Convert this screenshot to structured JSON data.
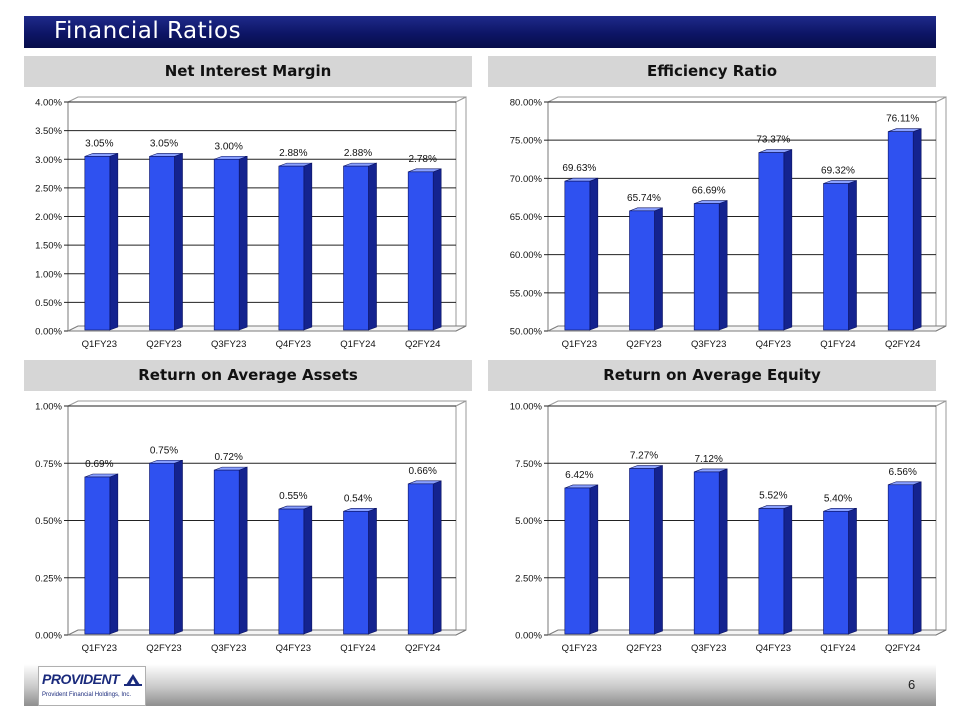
{
  "slide": {
    "title": "Financial Ratios",
    "page_number": "6",
    "logo": {
      "name": "PROVIDENT",
      "subtitle": "Provident Financial Holdings, Inc."
    }
  },
  "colors": {
    "bar_front": "#2f51f0",
    "bar_side": "#14238f",
    "bar_top": "#8aa1ff",
    "header_bg": "#d6d6d6",
    "title_bg": "#0d1566"
  },
  "chart_data": [
    {
      "type": "bar",
      "title": "Net Interest Margin",
      "categories": [
        "Q1FY23",
        "Q2FY23",
        "Q3FY23",
        "Q4FY23",
        "Q1FY24",
        "Q2FY24"
      ],
      "values": [
        3.05,
        3.05,
        3.0,
        2.88,
        2.88,
        2.78
      ],
      "data_labels": [
        "3.05%",
        "3.05%",
        "3.00%",
        "2.88%",
        "2.88%",
        "2.78%"
      ],
      "ylim": [
        0,
        4
      ],
      "yticks": [
        0,
        0.5,
        1,
        1.5,
        2,
        2.5,
        3,
        3.5,
        4
      ],
      "ytick_labels": [
        "0.00%",
        "0.50%",
        "1.00%",
        "1.50%",
        "2.00%",
        "2.50%",
        "3.00%",
        "3.50%",
        "4.00%"
      ],
      "grid": true
    },
    {
      "type": "bar",
      "title": "Efficiency Ratio",
      "categories": [
        "Q1FY23",
        "Q2FY23",
        "Q3FY23",
        "Q4FY23",
        "Q1FY24",
        "Q2FY24"
      ],
      "values": [
        69.63,
        65.74,
        66.69,
        73.37,
        69.32,
        76.11
      ],
      "data_labels": [
        "69.63%",
        "65.74%",
        "66.69%",
        "73.37%",
        "69.32%",
        "76.11%"
      ],
      "ylim": [
        50,
        80
      ],
      "yticks": [
        50,
        55,
        60,
        65,
        70,
        75,
        80
      ],
      "ytick_labels": [
        "50.00%",
        "55.00%",
        "60.00%",
        "65.00%",
        "70.00%",
        "75.00%",
        "80.00%"
      ],
      "grid": true
    },
    {
      "type": "bar",
      "title": "Return on Average Assets",
      "categories": [
        "Q1FY23",
        "Q2FY23",
        "Q3FY23",
        "Q4FY23",
        "Q1FY24",
        "Q2FY24"
      ],
      "values": [
        0.69,
        0.75,
        0.72,
        0.55,
        0.54,
        0.66
      ],
      "data_labels": [
        "0.69%",
        "0.75%",
        "0.72%",
        "0.55%",
        "0.54%",
        "0.66%"
      ],
      "ylim": [
        0,
        1
      ],
      "yticks": [
        0,
        0.25,
        0.5,
        0.75,
        1
      ],
      "ytick_labels": [
        "0.00%",
        "0.25%",
        "0.50%",
        "0.75%",
        "1.00%"
      ],
      "grid": true
    },
    {
      "type": "bar",
      "title": "Return on Average Equity",
      "categories": [
        "Q1FY23",
        "Q2FY23",
        "Q3FY23",
        "Q4FY23",
        "Q1FY24",
        "Q2FY24"
      ],
      "values": [
        6.42,
        7.27,
        7.12,
        5.52,
        5.4,
        6.56
      ],
      "data_labels": [
        "6.42%",
        "7.27%",
        "7.12%",
        "5.52%",
        "5.40%",
        "6.56%"
      ],
      "ylim": [
        0,
        10
      ],
      "yticks": [
        0,
        2.5,
        5,
        7.5,
        10
      ],
      "ytick_labels": [
        "0.00%",
        "2.50%",
        "5.00%",
        "7.50%",
        "10.00%"
      ],
      "grid": true
    }
  ]
}
